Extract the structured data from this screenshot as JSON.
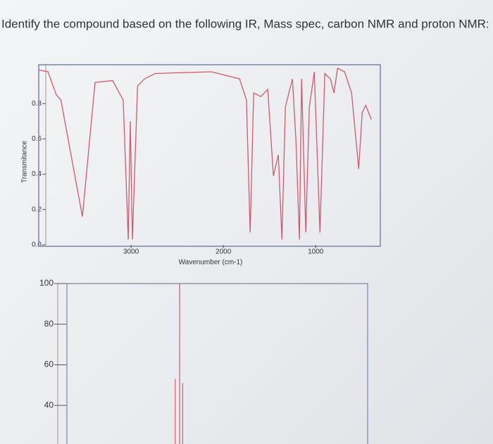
{
  "question": "Identify the compound based on the following IR, Mass spec, carbon NMR and proton NMR:",
  "chart_data": [
    {
      "type": "line",
      "ylabel": "Transmitance",
      "xlabel": "Wavenumber (cm-1)",
      "color": "#d4586f",
      "xlim": [
        4000,
        300
      ],
      "xticks": [
        3000,
        2000,
        1000
      ],
      "ylim": [
        0,
        1.02
      ],
      "yticks": [
        {
          "value": 0,
          "label": "0.0"
        },
        0.2,
        0.4,
        0.6,
        0.8
      ],
      "x": [
        4000,
        3900,
        3810,
        3760,
        3527,
        3390,
        3200,
        3085,
        3030,
        3008,
        2985,
        2930,
        2855,
        2740,
        2130,
        1824,
        1750,
        1710,
        1672,
        1595,
        1519,
        1458,
        1405,
        1366,
        1328,
        1252,
        1214,
        1176,
        1153,
        1107,
        1069,
        1015,
        954,
        901,
        840,
        802,
        763,
        687,
        611,
        534,
        496,
        458,
        397
      ],
      "values": [
        0.99,
        0.98,
        0.85,
        0.82,
        0.16,
        0.92,
        0.93,
        0.82,
        0.03,
        0.7,
        0.03,
        0.9,
        0.94,
        0.97,
        0.98,
        0.94,
        0.82,
        0.07,
        0.86,
        0.84,
        0.88,
        0.39,
        0.51,
        0.03,
        0.78,
        0.94,
        0.59,
        0.03,
        0.94,
        0.07,
        0.78,
        0.98,
        0.07,
        0.97,
        0.94,
        0.86,
        1.0,
        0.98,
        0.86,
        0.43,
        0.75,
        0.79,
        0.71
      ]
    },
    {
      "type": "bar",
      "color": "#d4586f",
      "xlim": [
        0,
        100
      ],
      "x": [
        36,
        37.5,
        38.5
      ],
      "ylim": [
        21,
        100
      ],
      "yticks": [
        100,
        80,
        60,
        40
      ],
      "values": [
        53,
        100,
        51
      ]
    }
  ]
}
